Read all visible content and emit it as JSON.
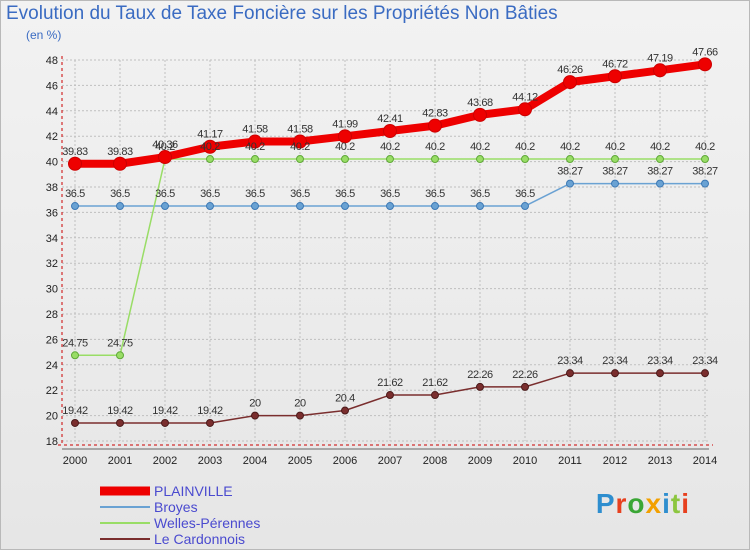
{
  "title": "Evolution du Taux de Taxe Foncière sur les Propriétés Non Bâties",
  "unit_label": "(en %)",
  "logo": [
    "P",
    "r",
    "o",
    "x",
    "i",
    "t",
    "i"
  ],
  "colors": {
    "title": "#3a6bc2",
    "grid": "#bfbfbf",
    "axis": "#cc0000"
  },
  "chart_data": {
    "type": "line",
    "title": "Evolution du Taux de Taxe Foncière sur les Propriétés Non Bâties",
    "ylabel": "(en %)",
    "xlabel": "",
    "ylim": [
      18,
      48
    ],
    "yticks": [
      18,
      20,
      22,
      24,
      26,
      28,
      30,
      32,
      34,
      36,
      38,
      40,
      42,
      44,
      46,
      48
    ],
    "grid": true,
    "legend_position": "bottom-left",
    "x": [
      "2000",
      "2001",
      "2002",
      "2003",
      "2004",
      "2005",
      "2006",
      "2007",
      "2008",
      "2009",
      "2010",
      "2011",
      "2012",
      "2013",
      "2014"
    ],
    "series": [
      {
        "name": "PLAINVILLE",
        "color": "#ee0000",
        "width": 8,
        "values": [
          39.83,
          39.83,
          40.36,
          41.17,
          41.58,
          41.58,
          41.99,
          42.41,
          42.83,
          43.68,
          44.12,
          46.26,
          46.72,
          47.19,
          47.66
        ],
        "labels": [
          "39.83",
          "39.83",
          "40.36",
          "41.17",
          "41.58",
          "41.58",
          "41.99",
          "42.41",
          "42.83",
          "43.68",
          "44.12",
          "46.26",
          "46.72",
          "47.19",
          "47.66"
        ]
      },
      {
        "name": "Broyes",
        "color": "#6aa2d3",
        "width": 1.5,
        "values": [
          36.5,
          36.5,
          36.5,
          36.5,
          36.5,
          36.5,
          36.5,
          36.5,
          36.5,
          36.5,
          36.5,
          38.27,
          38.27,
          38.27,
          38.27
        ],
        "labels": [
          "36.5",
          "36.5",
          "36.5",
          "36.5",
          "36.5",
          "36.5",
          "36.5",
          "36.5",
          "36.5",
          "36.5",
          "36.5",
          "38.27",
          "38.27",
          "38.27",
          "38.27"
        ]
      },
      {
        "name": "Welles-Pérennes",
        "color": "#99dd66",
        "width": 1.5,
        "values": [
          24.75,
          24.75,
          40.2,
          40.2,
          40.2,
          40.2,
          40.2,
          40.2,
          40.2,
          40.2,
          40.2,
          40.2,
          40.2,
          40.2,
          40.2
        ],
        "labels": [
          "24.75",
          "24.75",
          "40.2",
          "40.2",
          "40.2",
          "40.2",
          "40.2",
          "40.2",
          "40.2",
          "40.2",
          "40.2",
          "40.2",
          "40.2",
          "40.2",
          "40.2"
        ]
      },
      {
        "name": "Le Cardonnois",
        "color": "#7a2e2e",
        "width": 1.5,
        "values": [
          19.42,
          19.42,
          19.42,
          19.42,
          20,
          20,
          20.4,
          21.62,
          21.62,
          22.26,
          22.26,
          23.34,
          23.34,
          23.34,
          23.34
        ],
        "labels": [
          "19.42",
          "19.42",
          "19.42",
          "19.42",
          "20",
          "20",
          "20.4",
          "21.62",
          "21.62",
          "22.26",
          "22.26",
          "23.34",
          "23.34",
          "23.34",
          "23.34"
        ]
      }
    ]
  }
}
